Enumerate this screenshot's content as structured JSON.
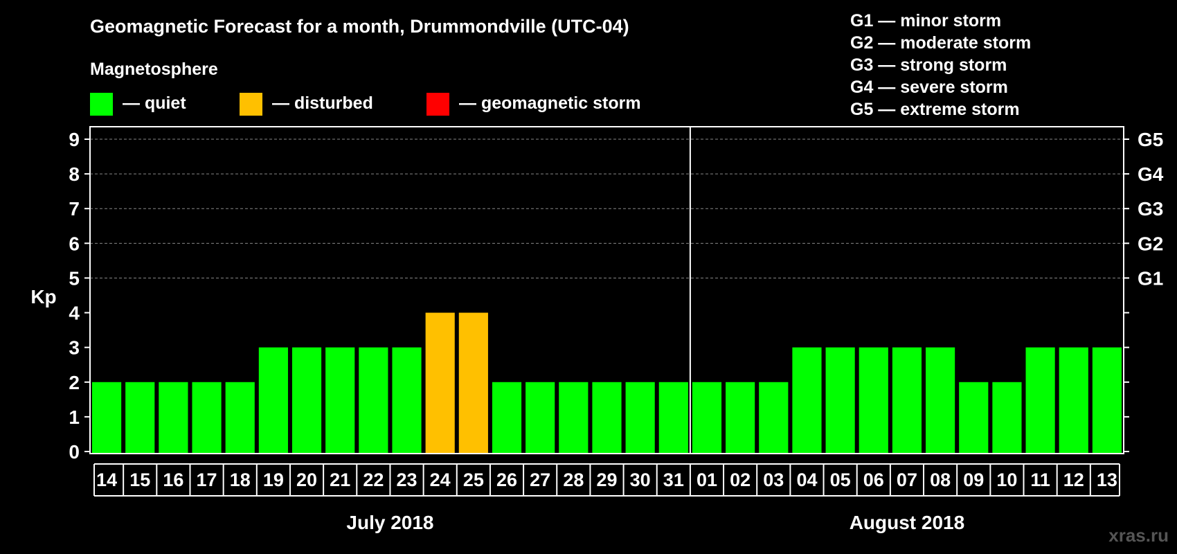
{
  "chart_data": {
    "type": "bar",
    "title": "Geomagnetic Forecast for a month, Drummondville (UTC-04)",
    "legend_title": "Magnetosphere",
    "legend": [
      {
        "label": "— quiet",
        "color": "#00ff00"
      },
      {
        "label": "— disturbed",
        "color": "#ffc000"
      },
      {
        "label": "— geomagnetic storm",
        "color": "#ff0000"
      }
    ],
    "storm_scale": [
      "G1 — minor storm",
      "G2 — moderate storm",
      "G3 — strong storm",
      "G4 — severe storm",
      "G5 — extreme storm"
    ],
    "ylabel": "Kp",
    "ylim": [
      0,
      9
    ],
    "yticks": [
      "0",
      "1",
      "2",
      "3",
      "4",
      "5",
      "6",
      "7",
      "8",
      "9"
    ],
    "g_levels": [
      {
        "kp": 5,
        "label": "G1"
      },
      {
        "kp": 6,
        "label": "G2"
      },
      {
        "kp": 7,
        "label": "G3"
      },
      {
        "kp": 8,
        "label": "G4"
      },
      {
        "kp": 9,
        "label": "G5"
      }
    ],
    "months": [
      {
        "label": "July 2018",
        "days": 18
      },
      {
        "label": "August 2018",
        "days": 13
      }
    ],
    "categories": [
      "14",
      "15",
      "16",
      "17",
      "18",
      "19",
      "20",
      "21",
      "22",
      "23",
      "24",
      "25",
      "26",
      "27",
      "28",
      "29",
      "30",
      "31",
      "01",
      "02",
      "03",
      "04",
      "05",
      "06",
      "07",
      "08",
      "09",
      "10",
      "11",
      "12",
      "13"
    ],
    "values": [
      2,
      2,
      2,
      2,
      2,
      3,
      3,
      3,
      3,
      3,
      4,
      4,
      2,
      2,
      2,
      2,
      2,
      2,
      2,
      2,
      2,
      3,
      3,
      3,
      3,
      3,
      2,
      2,
      3,
      3,
      3
    ],
    "status": [
      "quiet",
      "quiet",
      "quiet",
      "quiet",
      "quiet",
      "quiet",
      "quiet",
      "quiet",
      "quiet",
      "quiet",
      "disturbed",
      "disturbed",
      "quiet",
      "quiet",
      "quiet",
      "quiet",
      "quiet",
      "quiet",
      "quiet",
      "quiet",
      "quiet",
      "quiet",
      "quiet",
      "quiet",
      "quiet",
      "quiet",
      "quiet",
      "quiet",
      "quiet",
      "quiet",
      "quiet"
    ],
    "status_colors": {
      "quiet": "#00ff00",
      "disturbed": "#ffc000",
      "storm": "#ff0000"
    },
    "watermark": "xras.ru"
  }
}
